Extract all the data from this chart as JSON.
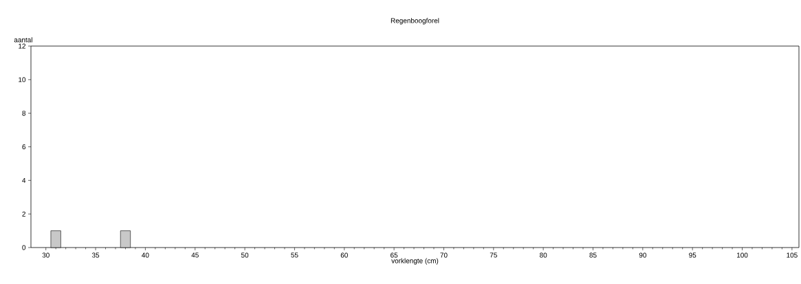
{
  "chart_data": {
    "type": "bar",
    "title": "Regenboogforel",
    "xlabel": "vorklengte (cm)",
    "ylabel": "aantal",
    "x": [
      31,
      38
    ],
    "values": [
      1,
      1
    ],
    "color": "#c8c8c8",
    "xlim": [
      28.5,
      105.7
    ],
    "ylim": [
      0,
      12
    ],
    "xticks": [
      30,
      35,
      40,
      45,
      50,
      55,
      60,
      65,
      70,
      75,
      80,
      85,
      90,
      95,
      100,
      105
    ],
    "yticks": [
      0,
      2,
      4,
      6,
      8,
      10,
      12
    ]
  }
}
